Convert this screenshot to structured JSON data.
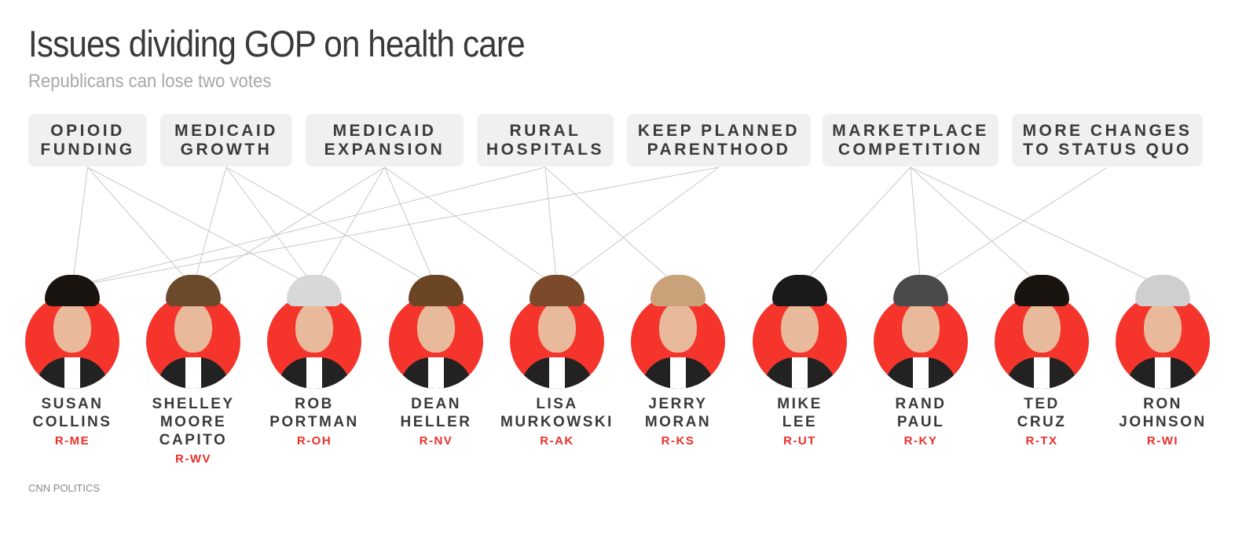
{
  "title": "Issues dividing GOP on health care",
  "subtitle": "Republicans can lose two votes",
  "source": "CNN POLITICS",
  "colors": {
    "accent": "#f5352b",
    "state_text": "#e8302a",
    "pill_bg": "#f0f0f0",
    "line": "#c8c8c8"
  },
  "issues": [
    {
      "id": "opioid",
      "label": "OPIOID\nFUNDING"
    },
    {
      "id": "growth",
      "label": "MEDICAID\nGROWTH"
    },
    {
      "id": "expansion",
      "label": "MEDICAID\nEXPANSION"
    },
    {
      "id": "rural",
      "label": "RURAL\nHOSPITALS"
    },
    {
      "id": "pp",
      "label": "KEEP PLANNED\nPARENTHOOD"
    },
    {
      "id": "market",
      "label": "MARKETPLACE\nCOMPETITION"
    },
    {
      "id": "more",
      "label": "MORE CHANGES\nTO STATUS QUO"
    }
  ],
  "senators": [
    {
      "name": "SUSAN\nCOLLINS",
      "state": "R-ME",
      "hair": "#1a1410",
      "issues": [
        "opioid",
        "rural",
        "pp"
      ]
    },
    {
      "name": "SHELLEY\nMOORE\nCAPITO",
      "state": "R-WV",
      "hair": "#6b4a2c",
      "issues": [
        "opioid",
        "growth",
        "expansion"
      ]
    },
    {
      "name": "ROB\nPORTMAN",
      "state": "R-OH",
      "hair": "#d8d8d8",
      "issues": [
        "opioid",
        "growth",
        "expansion"
      ]
    },
    {
      "name": "DEAN\nHELLER",
      "state": "R-NV",
      "hair": "#6b4524",
      "issues": [
        "growth",
        "expansion"
      ]
    },
    {
      "name": "LISA\nMURKOWSKI",
      "state": "R-AK",
      "hair": "#7a4a2a",
      "issues": [
        "expansion",
        "rural",
        "pp"
      ]
    },
    {
      "name": "JERRY\nMORAN",
      "state": "R-KS",
      "hair": "#c9a27a",
      "issues": [
        "rural"
      ]
    },
    {
      "name": "MIKE\nLEE",
      "state": "R-UT",
      "hair": "#1a1a1a",
      "issues": [
        "market"
      ]
    },
    {
      "name": "RAND\nPAUL",
      "state": "R-KY",
      "hair": "#4a4a4a",
      "issues": [
        "market",
        "more"
      ]
    },
    {
      "name": "TED\nCRUZ",
      "state": "R-TX",
      "hair": "#1a1410",
      "issues": [
        "market"
      ]
    },
    {
      "name": "RON\nJOHNSON",
      "state": "R-WI",
      "hair": "#cfcfcf",
      "issues": [
        "market"
      ]
    }
  ]
}
